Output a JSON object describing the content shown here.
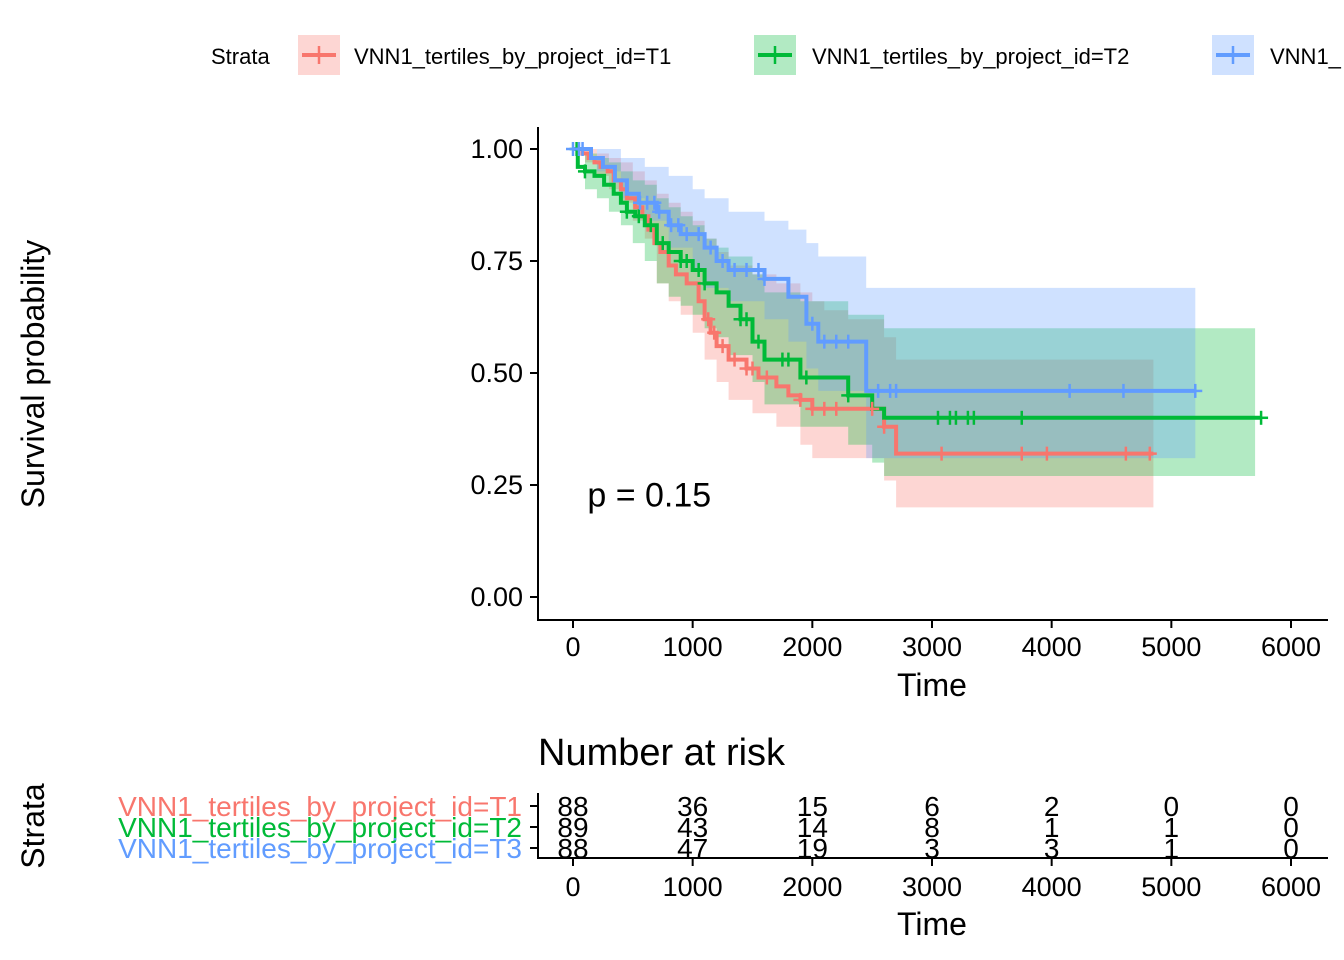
{
  "chart_data": [
    {
      "type": "line",
      "subtype": "kaplan-meier",
      "title": "",
      "xlabel": "Time",
      "ylabel": "Survival probability",
      "xlim": [
        0,
        6000
      ],
      "ylim": [
        0,
        1
      ],
      "x_ticks": [
        "0",
        "1000",
        "2000",
        "3000",
        "4000",
        "5000",
        "6000"
      ],
      "y_ticks": [
        "0.00",
        "0.25",
        "0.50",
        "0.75",
        "1.00"
      ],
      "x_tick_values": [
        0,
        1000,
        2000,
        3000,
        4000,
        5000,
        6000
      ],
      "y_tick_values": [
        0,
        0.25,
        0.5,
        0.75,
        1
      ],
      "annotation": "p = 0.15",
      "annotation_at": [
        120,
        0.2
      ],
      "legend": {
        "title": "Strata",
        "position": "top",
        "entries": [
          "VNN1_tertiles_by_project_id=T1",
          "VNN1_tertiles_by_project_id=T2",
          "VNN1_"
        ]
      },
      "series": [
        {
          "name": "VNN1_tertiles_by_project_id=T1",
          "color": "#F8766D",
          "steps": [
            [
              0,
              1.0
            ],
            [
              80,
              0.99
            ],
            [
              130,
              0.98
            ],
            [
              180,
              0.97
            ],
            [
              230,
              0.96
            ],
            [
              290,
              0.95
            ],
            [
              340,
              0.93
            ],
            [
              400,
              0.91
            ],
            [
              450,
              0.89
            ],
            [
              520,
              0.87
            ],
            [
              580,
              0.85
            ],
            [
              630,
              0.82
            ],
            [
              680,
              0.79
            ],
            [
              730,
              0.77
            ],
            [
              800,
              0.74
            ],
            [
              860,
              0.72
            ],
            [
              950,
              0.7
            ],
            [
              1050,
              0.66
            ],
            [
              1100,
              0.62
            ],
            [
              1150,
              0.59
            ],
            [
              1200,
              0.56
            ],
            [
              1300,
              0.53
            ],
            [
              1450,
              0.51
            ],
            [
              1550,
              0.49
            ],
            [
              1700,
              0.47
            ],
            [
              1800,
              0.45
            ],
            [
              1900,
              0.44
            ],
            [
              2000,
              0.42
            ],
            [
              2600,
              0.38
            ],
            [
              2700,
              0.32
            ],
            [
              4850,
              0.32
            ]
          ],
          "ci_upper": [
            [
              0,
              1.0
            ],
            [
              100,
              1.0
            ],
            [
              200,
              0.99
            ],
            [
              300,
              0.98
            ],
            [
              400,
              0.97
            ],
            [
              500,
              0.95
            ],
            [
              600,
              0.93
            ],
            [
              700,
              0.9
            ],
            [
              800,
              0.88
            ],
            [
              900,
              0.86
            ],
            [
              1000,
              0.84
            ],
            [
              1100,
              0.8
            ],
            [
              1200,
              0.77
            ],
            [
              1300,
              0.74
            ],
            [
              1500,
              0.72
            ],
            [
              1700,
              0.7
            ],
            [
              1900,
              0.68
            ],
            [
              2000,
              0.66
            ],
            [
              2100,
              0.64
            ],
            [
              2300,
              0.62
            ],
            [
              2600,
              0.58
            ],
            [
              2700,
              0.53
            ],
            [
              4850,
              0.53
            ]
          ],
          "ci_lower": [
            [
              0,
              1.0
            ],
            [
              100,
              0.97
            ],
            [
              200,
              0.94
            ],
            [
              300,
              0.91
            ],
            [
              400,
              0.88
            ],
            [
              500,
              0.84
            ],
            [
              600,
              0.8
            ],
            [
              700,
              0.7
            ],
            [
              800,
              0.66
            ],
            [
              900,
              0.63
            ],
            [
              1000,
              0.59
            ],
            [
              1100,
              0.53
            ],
            [
              1200,
              0.48
            ],
            [
              1300,
              0.44
            ],
            [
              1500,
              0.41
            ],
            [
              1700,
              0.38
            ],
            [
              1900,
              0.34
            ],
            [
              2000,
              0.31
            ],
            [
              2300,
              0.31
            ],
            [
              2600,
              0.26
            ],
            [
              2700,
              0.2
            ],
            [
              4850,
              0.2
            ]
          ],
          "censor_x": [
            1130,
            1180,
            1250,
            1350,
            1450,
            1500,
            1620,
            1900,
            2000,
            2100,
            2200,
            2500,
            2600,
            3080,
            3750,
            3960,
            4620,
            4820
          ],
          "risk": [
            "88",
            "36",
            "15",
            "6",
            "2",
            "0",
            "0"
          ]
        },
        {
          "name": "VNN1_tertiles_by_project_id=T2",
          "color": "#00BA38",
          "steps": [
            [
              0,
              1.0
            ],
            [
              40,
              0.96
            ],
            [
              100,
              0.95
            ],
            [
              180,
              0.94
            ],
            [
              260,
              0.92
            ],
            [
              340,
              0.9
            ],
            [
              400,
              0.88
            ],
            [
              450,
              0.86
            ],
            [
              520,
              0.85
            ],
            [
              600,
              0.83
            ],
            [
              700,
              0.79
            ],
            [
              800,
              0.77
            ],
            [
              900,
              0.75
            ],
            [
              1000,
              0.73
            ],
            [
              1100,
              0.7
            ],
            [
              1200,
              0.68
            ],
            [
              1300,
              0.65
            ],
            [
              1400,
              0.62
            ],
            [
              1500,
              0.57
            ],
            [
              1600,
              0.53
            ],
            [
              1900,
              0.49
            ],
            [
              2300,
              0.45
            ],
            [
              2500,
              0.42
            ],
            [
              2600,
              0.4
            ],
            [
              5750,
              0.4
            ]
          ],
          "ci_upper": [
            [
              0,
              1.0
            ],
            [
              100,
              0.99
            ],
            [
              200,
              0.98
            ],
            [
              300,
              0.97
            ],
            [
              400,
              0.95
            ],
            [
              500,
              0.93
            ],
            [
              600,
              0.92
            ],
            [
              700,
              0.89
            ],
            [
              800,
              0.87
            ],
            [
              900,
              0.85
            ],
            [
              1000,
              0.83
            ],
            [
              1100,
              0.8
            ],
            [
              1200,
              0.78
            ],
            [
              1300,
              0.76
            ],
            [
              1500,
              0.72
            ],
            [
              1600,
              0.68
            ],
            [
              1900,
              0.66
            ],
            [
              2300,
              0.63
            ],
            [
              2600,
              0.6
            ],
            [
              5700,
              0.6
            ]
          ],
          "ci_lower": [
            [
              0,
              1.0
            ],
            [
              100,
              0.91
            ],
            [
              200,
              0.89
            ],
            [
              300,
              0.86
            ],
            [
              400,
              0.83
            ],
            [
              500,
              0.79
            ],
            [
              600,
              0.75
            ],
            [
              700,
              0.7
            ],
            [
              800,
              0.67
            ],
            [
              900,
              0.65
            ],
            [
              1000,
              0.63
            ],
            [
              1100,
              0.6
            ],
            [
              1200,
              0.58
            ],
            [
              1300,
              0.54
            ],
            [
              1500,
              0.48
            ],
            [
              1600,
              0.43
            ],
            [
              1900,
              0.38
            ],
            [
              2300,
              0.34
            ],
            [
              2500,
              0.3
            ],
            [
              2600,
              0.27
            ],
            [
              5700,
              0.27
            ]
          ],
          "censor_x": [
            30,
            100,
            450,
            550,
            650,
            750,
            900,
            950,
            1050,
            1100,
            1400,
            1450,
            1550,
            1750,
            1800,
            1950,
            2300,
            3050,
            3150,
            3200,
            3300,
            3350,
            3750,
            5750
          ],
          "risk": [
            "89",
            "43",
            "14",
            "8",
            "1",
            "1",
            "0"
          ]
        },
        {
          "name": "VNN1_tertiles_by_project_id=T3",
          "color": "#619CFF",
          "steps": [
            [
              0,
              1.0
            ],
            [
              150,
              0.98
            ],
            [
              250,
              0.96
            ],
            [
              350,
              0.93
            ],
            [
              450,
              0.9
            ],
            [
              550,
              0.88
            ],
            [
              700,
              0.86
            ],
            [
              800,
              0.83
            ],
            [
              900,
              0.81
            ],
            [
              1100,
              0.78
            ],
            [
              1200,
              0.75
            ],
            [
              1300,
              0.73
            ],
            [
              1600,
              0.71
            ],
            [
              1800,
              0.67
            ],
            [
              1950,
              0.61
            ],
            [
              2050,
              0.57
            ],
            [
              2450,
              0.46
            ],
            [
              5200,
              0.46
            ]
          ],
          "ci_upper": [
            [
              0,
              1.0
            ],
            [
              200,
              1.0
            ],
            [
              400,
              0.98
            ],
            [
              600,
              0.96
            ],
            [
              800,
              0.94
            ],
            [
              1000,
              0.91
            ],
            [
              1100,
              0.89
            ],
            [
              1300,
              0.86
            ],
            [
              1600,
              0.84
            ],
            [
              1800,
              0.82
            ],
            [
              1950,
              0.79
            ],
            [
              2050,
              0.76
            ],
            [
              2450,
              0.69
            ],
            [
              5200,
              0.69
            ]
          ],
          "ci_lower": [
            [
              0,
              1.0
            ],
            [
              200,
              0.95
            ],
            [
              400,
              0.89
            ],
            [
              600,
              0.84
            ],
            [
              800,
              0.78
            ],
            [
              1000,
              0.73
            ],
            [
              1100,
              0.69
            ],
            [
              1300,
              0.66
            ],
            [
              1600,
              0.62
            ],
            [
              1800,
              0.57
            ],
            [
              1950,
              0.51
            ],
            [
              2050,
              0.46
            ],
            [
              2450,
              0.31
            ],
            [
              5200,
              0.31
            ]
          ],
          "censor_x": [
            0,
            50,
            80,
            560,
            620,
            680,
            720,
            820,
            880,
            950,
            1050,
            1150,
            1250,
            1350,
            1450,
            1550,
            1600,
            2000,
            2100,
            2200,
            2300,
            2550,
            2650,
            2700,
            4150,
            4600,
            5200
          ],
          "risk": [
            "88",
            "47",
            "19",
            "3",
            "3",
            "1",
            "0"
          ]
        }
      ]
    },
    {
      "type": "table",
      "title": "Number at risk",
      "xlabel": "Time",
      "ylabel": "Strata",
      "x_ticks": [
        "0",
        "1000",
        "2000",
        "3000",
        "4000",
        "5000",
        "6000"
      ],
      "row_labels": [
        "VNN1_tertiles_by_project_id=T1",
        "VNN1_tertiles_by_project_id=T2",
        "VNN1_tertiles_by_project_id=T3"
      ]
    }
  ]
}
